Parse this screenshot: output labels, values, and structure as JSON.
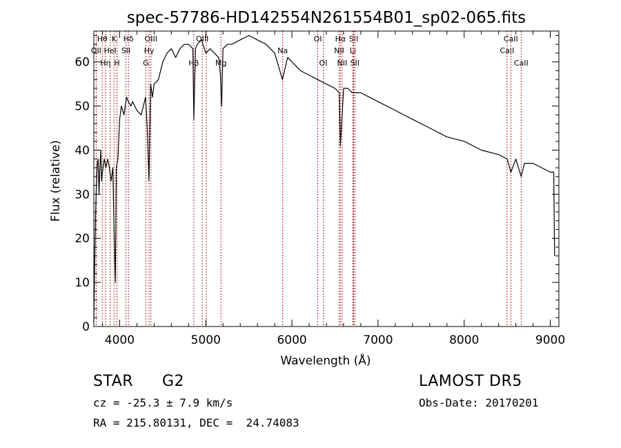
{
  "chart_data": {
    "type": "line",
    "title": "spec-57786-HD142554N261554B01_sp02-065.fits",
    "xlabel": "Wavelength (Å)",
    "ylabel": "Flux (relative)",
    "xlim": [
      3700,
      9100
    ],
    "ylim": [
      0,
      67
    ],
    "xticks": [
      4000,
      5000,
      6000,
      7000,
      8000,
      9000
    ],
    "yticks": [
      0,
      10,
      20,
      30,
      40,
      50,
      60
    ],
    "grid": false,
    "line_color": "#000000",
    "marker_color": "#b22222",
    "series": [
      {
        "x": [
          3700,
          3710,
          3720,
          3730,
          3740,
          3750,
          3760,
          3770,
          3780,
          3790,
          3800,
          3820,
          3840,
          3860,
          3880,
          3900,
          3920,
          3935,
          3950,
          3960,
          3970,
          3980,
          4000,
          4020,
          4050,
          4080,
          4100,
          4130,
          4150,
          4200,
          4250,
          4300,
          4320,
          4340,
          4360,
          4380,
          4400,
          4450,
          4500,
          4550,
          4600,
          4650,
          4700,
          4750,
          4800,
          4850,
          4861,
          4880,
          4900,
          4950,
          5000,
          5050,
          5100,
          5150,
          5170,
          5184,
          5200,
          5250,
          5300,
          5400,
          5500,
          5600,
          5700,
          5800,
          5890,
          5950,
          6000,
          6100,
          6200,
          6300,
          6400,
          6500,
          6550,
          6563,
          6600,
          6650,
          6700,
          6800,
          6900,
          7000,
          7200,
          7400,
          7600,
          7800,
          8000,
          8200,
          8400,
          8500,
          8542,
          8600,
          8662,
          8700,
          8800,
          8900,
          9000,
          9040,
          9050
        ],
        "y": [
          1,
          15,
          25,
          32,
          37,
          38,
          30,
          36,
          40,
          33,
          35,
          38,
          36,
          38,
          36,
          33,
          36,
          22,
          10,
          36,
          37,
          38,
          47,
          50,
          48,
          52,
          51,
          50,
          51,
          49,
          48,
          52,
          45,
          33,
          55,
          52,
          55,
          56,
          60,
          62,
          63,
          61,
          63,
          64,
          64,
          63,
          47,
          63,
          64,
          65,
          62,
          63,
          62,
          61,
          57,
          50,
          63,
          64,
          64,
          65,
          66,
          65,
          64,
          62,
          56,
          61,
          60,
          58,
          57,
          56,
          55,
          54,
          53,
          41,
          54,
          54,
          53,
          53,
          52,
          51,
          49,
          47,
          45,
          43,
          42,
          40,
          39,
          38,
          35,
          38,
          34,
          37,
          37,
          36,
          35,
          35,
          16
        ]
      }
    ],
    "line_markers": [
      {
        "w": 3727,
        "label": "OII",
        "row": 2
      },
      {
        "w": 3798,
        "label": "Hθ",
        "row": 1
      },
      {
        "w": 3835,
        "label": "Hη",
        "row": 3
      },
      {
        "w": 3889,
        "label": "HeI",
        "row": 2
      },
      {
        "w": 3934,
        "label": "K",
        "row": 1
      },
      {
        "w": 3969,
        "label": "H",
        "row": 3
      },
      {
        "w": 4072,
        "label": "SII",
        "row": 2
      },
      {
        "w": 4102,
        "label": "Hδ",
        "row": 1
      },
      {
        "w": 4304,
        "label": "G",
        "row": 3
      },
      {
        "w": 4341,
        "label": "Hγ",
        "row": 2
      },
      {
        "w": 4363,
        "label": "OIII",
        "row": 1
      },
      {
        "w": 4861,
        "label": "Hβ",
        "row": 3
      },
      {
        "w": 4959,
        "label": "OIII",
        "row": 1
      },
      {
        "w": 5007,
        "label": "",
        "row": 1
      },
      {
        "w": 5176,
        "label": "Mg",
        "row": 3
      },
      {
        "w": 5893,
        "label": "Na",
        "row": 2
      },
      {
        "w": 6300,
        "label": "OI",
        "row": 1
      },
      {
        "w": 6364,
        "label": "OI",
        "row": 3
      },
      {
        "w": 6548,
        "label": "NII",
        "row": 2
      },
      {
        "w": 6563,
        "label": "Hα",
        "row": 1
      },
      {
        "w": 6583,
        "label": "NII",
        "row": 3
      },
      {
        "w": 6708,
        "label": "Li",
        "row": 2
      },
      {
        "w": 6717,
        "label": "SII",
        "row": 1
      },
      {
        "w": 6731,
        "label": "SII",
        "row": 3
      },
      {
        "w": 8498,
        "label": "CaII",
        "row": 2
      },
      {
        "w": 8542,
        "label": "CaII",
        "row": 1
      },
      {
        "w": 8662,
        "label": "CaII",
        "row": 3
      }
    ]
  },
  "info": {
    "object_class": "STAR",
    "subclass": "G2",
    "survey": "LAMOST DR5",
    "redshift": "cz = -25.3 ± 7.9 km/s",
    "obs_date": "Obs-Date: 20170201",
    "coords": "RA = 215.80131, DEC =  24.74083"
  }
}
